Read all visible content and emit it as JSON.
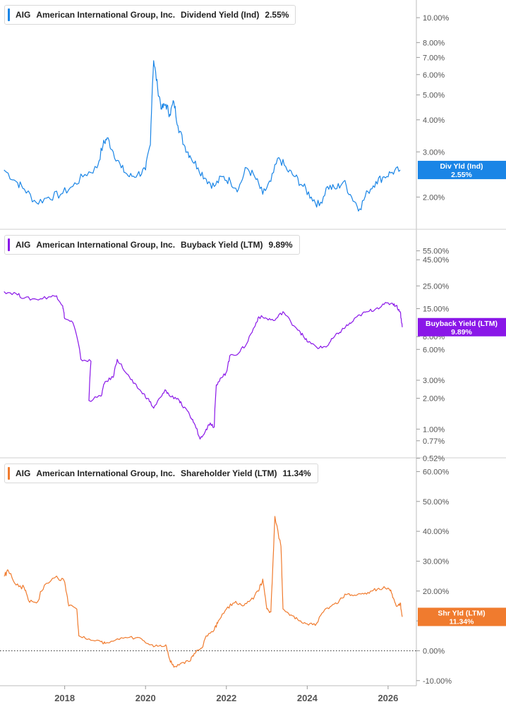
{
  "legends": [
    {
      "ticker": "AIG",
      "company": "American International Group, Inc.",
      "metric": "Dividend Yield (Ind)",
      "value": "2.55%"
    },
    {
      "ticker": "AIG",
      "company": "American International Group, Inc.",
      "metric": "Buyback Yield (LTM)",
      "value": "9.89%"
    },
    {
      "ticker": "AIG",
      "company": "American International Group, Inc.",
      "metric": "Shareholder Yield (LTM)",
      "value": "11.34%"
    }
  ],
  "x_axis": {
    "ticks": [
      "2018",
      "2020",
      "2022",
      "2024",
      "2026"
    ]
  },
  "colors": {
    "div": "#1a85e6",
    "buyback": "#8a17e8",
    "shareholder": "#f07b2e",
    "axis_text": "#555555",
    "grid": "#d6d6d6"
  },
  "chart_data": [
    {
      "type": "line",
      "scale": "log",
      "series": [
        {
          "name": "Div Yld (Ind)",
          "last_label": "2.55%",
          "points": [
            [
              2016.5,
              2.55
            ],
            [
              2016.8,
              2.3
            ],
            [
              2017.0,
              2.15
            ],
            [
              2017.3,
              1.9
            ],
            [
              2017.6,
              2.0
            ],
            [
              2017.9,
              2.05
            ],
            [
              2018.2,
              2.2
            ],
            [
              2018.5,
              2.45
            ],
            [
              2018.8,
              2.6
            ],
            [
              2018.95,
              3.2
            ],
            [
              2019.05,
              3.4
            ],
            [
              2019.2,
              3.0
            ],
            [
              2019.4,
              2.6
            ],
            [
              2019.6,
              2.4
            ],
            [
              2019.8,
              2.45
            ],
            [
              2020.0,
              2.55
            ],
            [
              2020.12,
              3.2
            ],
            [
              2020.2,
              6.8
            ],
            [
              2020.3,
              5.3
            ],
            [
              2020.4,
              4.4
            ],
            [
              2020.5,
              4.6
            ],
            [
              2020.6,
              4.2
            ],
            [
              2020.7,
              4.7
            ],
            [
              2020.8,
              3.8
            ],
            [
              2020.95,
              3.2
            ],
            [
              2021.1,
              2.9
            ],
            [
              2021.3,
              2.6
            ],
            [
              2021.5,
              2.35
            ],
            [
              2021.7,
              2.2
            ],
            [
              2021.9,
              2.4
            ],
            [
              2022.1,
              2.3
            ],
            [
              2022.3,
              2.15
            ],
            [
              2022.5,
              2.6
            ],
            [
              2022.7,
              2.4
            ],
            [
              2022.9,
              2.05
            ],
            [
              2023.1,
              2.3
            ],
            [
              2023.3,
              2.85
            ],
            [
              2023.5,
              2.55
            ],
            [
              2023.7,
              2.4
            ],
            [
              2023.9,
              2.2
            ],
            [
              2024.1,
              2.0
            ],
            [
              2024.3,
              1.85
            ],
            [
              2024.5,
              2.2
            ],
            [
              2024.7,
              2.15
            ],
            [
              2024.9,
              2.3
            ],
            [
              2025.1,
              2.0
            ],
            [
              2025.3,
              1.8
            ],
            [
              2025.5,
              2.1
            ],
            [
              2025.7,
              2.3
            ],
            [
              2025.9,
              2.4
            ],
            [
              2026.1,
              2.5
            ],
            [
              2026.3,
              2.55
            ]
          ]
        }
      ],
      "y_ticks": [
        "10.00%",
        "8.00%",
        "7.00%",
        "6.00%",
        "5.00%",
        "4.00%",
        "3.00%",
        "2.00%"
      ],
      "y_tick_values": [
        10,
        8,
        7,
        6,
        5,
        4,
        3,
        2
      ],
      "ylim": [
        1.7,
        11
      ]
    },
    {
      "type": "line",
      "scale": "log",
      "series": [
        {
          "name": "Buyback Yield (LTM)",
          "last_label": "9.89%",
          "points": [
            [
              2016.5,
              22
            ],
            [
              2016.8,
              21
            ],
            [
              2017.0,
              19
            ],
            [
              2017.3,
              18.5
            ],
            [
              2017.6,
              19.5
            ],
            [
              2017.8,
              20
            ],
            [
              2017.95,
              16
            ],
            [
              2018.0,
              12
            ],
            [
              2018.2,
              11
            ],
            [
              2018.4,
              4.8
            ],
            [
              2018.65,
              4.6
            ],
            [
              2018.6,
              1.9
            ],
            [
              2018.9,
              2.1
            ],
            [
              2019.0,
              2.9
            ],
            [
              2019.2,
              3.2
            ],
            [
              2019.3,
              4.8
            ],
            [
              2019.5,
              3.6
            ],
            [
              2019.7,
              2.8
            ],
            [
              2019.9,
              2.3
            ],
            [
              2020.05,
              2.0
            ],
            [
              2020.2,
              1.6
            ],
            [
              2020.4,
              2.1
            ],
            [
              2020.5,
              2.4
            ],
            [
              2020.6,
              2.1
            ],
            [
              2020.8,
              2.0
            ],
            [
              2020.9,
              1.7
            ],
            [
              2021.1,
              1.35
            ],
            [
              2021.2,
              1.15
            ],
            [
              2021.35,
              0.8
            ],
            [
              2021.5,
              1.0
            ],
            [
              2021.6,
              1.15
            ],
            [
              2021.7,
              1.05
            ],
            [
              2021.75,
              2.7
            ],
            [
              2021.9,
              3.2
            ],
            [
              2022.0,
              3.6
            ],
            [
              2022.1,
              5.3
            ],
            [
              2022.3,
              5.5
            ],
            [
              2022.5,
              6.8
            ],
            [
              2022.7,
              10
            ],
            [
              2022.8,
              12.5
            ],
            [
              2023.0,
              12
            ],
            [
              2023.2,
              11.5
            ],
            [
              2023.4,
              14
            ],
            [
              2023.6,
              11
            ],
            [
              2023.8,
              9.2
            ],
            [
              2023.95,
              7.5
            ],
            [
              2024.1,
              6.8
            ],
            [
              2024.3,
              6.2
            ],
            [
              2024.5,
              6.5
            ],
            [
              2024.65,
              7.8
            ],
            [
              2024.8,
              8.8
            ],
            [
              2024.95,
              10
            ],
            [
              2025.1,
              11
            ],
            [
              2025.3,
              13
            ],
            [
              2025.5,
              14
            ],
            [
              2025.7,
              15
            ],
            [
              2025.9,
              16.5
            ],
            [
              2026.1,
              17
            ],
            [
              2026.2,
              16
            ],
            [
              2026.3,
              14
            ],
            [
              2026.35,
              9.89
            ]
          ]
        }
      ],
      "y_ticks": [
        "55.00%",
        "45.00%",
        "25.00%",
        "15.00%",
        "8.00%",
        "6.00%",
        "3.00%",
        "2.00%",
        "1.00%",
        "0.77%",
        "0.52%"
      ],
      "y_tick_values": [
        55,
        45,
        25,
        15,
        8,
        6,
        3,
        2,
        1,
        0.77,
        0.52
      ],
      "ylim": [
        0.5,
        65
      ]
    },
    {
      "type": "line",
      "scale": "linear",
      "series": [
        {
          "name": "Shr Yld (LTM)",
          "last_label": "11.34%",
          "points": [
            [
              2016.5,
              25
            ],
            [
              2016.6,
              27
            ],
            [
              2016.8,
              22
            ],
            [
              2017.0,
              21
            ],
            [
              2017.1,
              17
            ],
            [
              2017.3,
              16
            ],
            [
              2017.5,
              22
            ],
            [
              2017.8,
              25
            ],
            [
              2018.0,
              23
            ],
            [
              2018.1,
              15
            ],
            [
              2018.3,
              14
            ],
            [
              2018.35,
              5
            ],
            [
              2018.6,
              4
            ],
            [
              2018.9,
              3
            ],
            [
              2019.0,
              2.5
            ],
            [
              2019.3,
              4
            ],
            [
              2019.6,
              4.5
            ],
            [
              2019.9,
              4
            ],
            [
              2020.1,
              2
            ],
            [
              2020.3,
              1.5
            ],
            [
              2020.5,
              2
            ],
            [
              2020.6,
              -3
            ],
            [
              2020.7,
              -5.5
            ],
            [
              2020.9,
              -4
            ],
            [
              2021.1,
              -3.5
            ],
            [
              2021.2,
              -1
            ],
            [
              2021.4,
              1
            ],
            [
              2021.5,
              5
            ],
            [
              2021.7,
              7
            ],
            [
              2021.8,
              10
            ],
            [
              2022.0,
              14
            ],
            [
              2022.2,
              16
            ],
            [
              2022.4,
              15
            ],
            [
              2022.6,
              17
            ],
            [
              2022.8,
              20
            ],
            [
              2022.9,
              24
            ],
            [
              2023.0,
              14
            ],
            [
              2023.1,
              13
            ],
            [
              2023.2,
              45
            ],
            [
              2023.35,
              35
            ],
            [
              2023.4,
              14
            ],
            [
              2023.6,
              12
            ],
            [
              2023.8,
              10
            ],
            [
              2024.0,
              9
            ],
            [
              2024.2,
              8.5
            ],
            [
              2024.4,
              13
            ],
            [
              2024.6,
              15
            ],
            [
              2024.8,
              17
            ],
            [
              2025.0,
              19
            ],
            [
              2025.2,
              18.5
            ],
            [
              2025.4,
              19
            ],
            [
              2025.6,
              20
            ],
            [
              2025.8,
              20.5
            ],
            [
              2026.0,
              21
            ],
            [
              2026.1,
              19
            ],
            [
              2026.2,
              15
            ],
            [
              2026.3,
              16
            ],
            [
              2026.35,
              11.34
            ]
          ]
        }
      ],
      "y_ticks": [
        "60.00%",
        "50.00%",
        "40.00%",
        "30.00%",
        "20.00%",
        "10.00%",
        "0.00%",
        "-10.00%"
      ],
      "y_tick_values": [
        60,
        50,
        40,
        30,
        20,
        10,
        0,
        -10
      ],
      "ylim": [
        -11,
        62
      ]
    }
  ]
}
